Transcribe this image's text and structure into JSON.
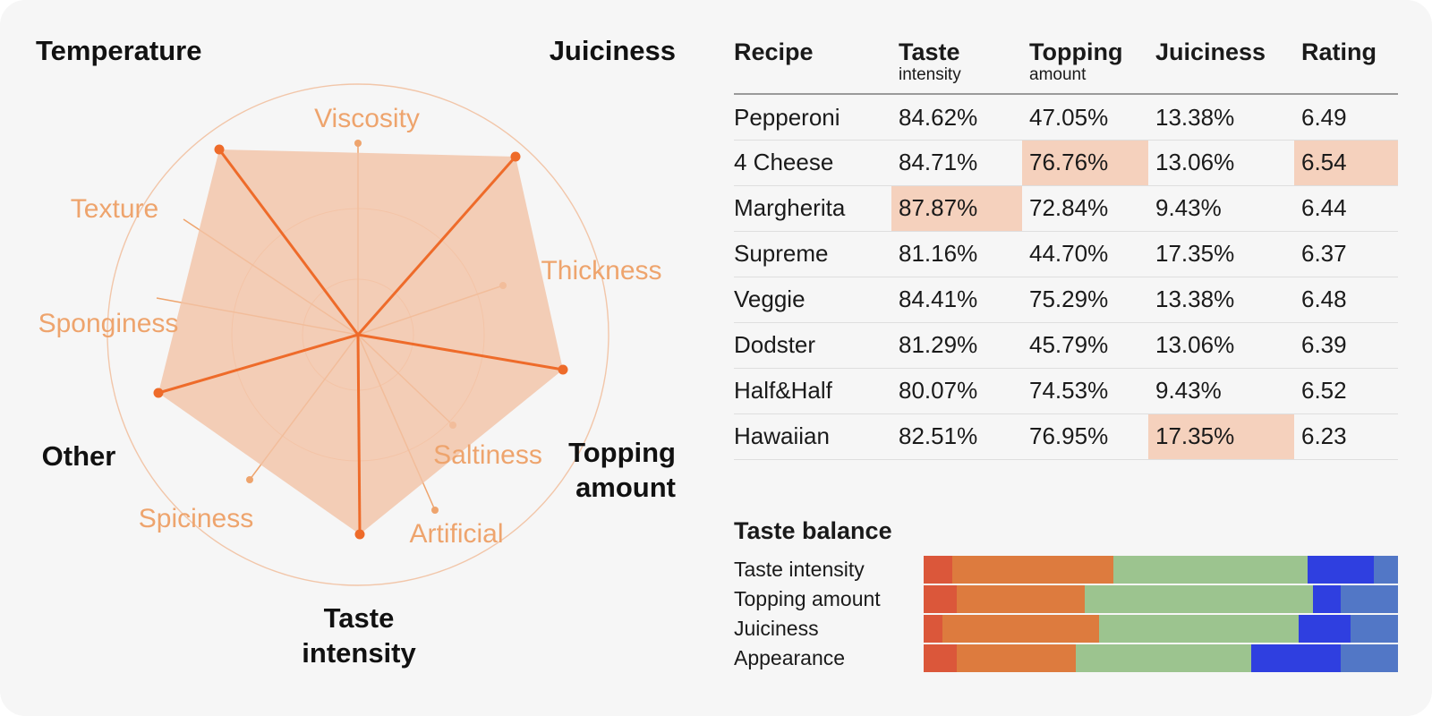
{
  "chart_data": [
    {
      "type": "radar",
      "main_axes": [
        "Juiciness",
        "Topping amount",
        "Taste intensity",
        "Other",
        "Temperature"
      ],
      "secondary_axes": [
        "Viscosity",
        "Thickness",
        "Saltiness",
        "Artificial",
        "Spiciness",
        "Sponginess",
        "Texture"
      ],
      "colors": {
        "fill": "#f2c3a6",
        "line": "#ee6b2a",
        "secondary": "#eea46d",
        "circle": "#f0b58f"
      }
    },
    {
      "type": "table",
      "columns": [
        {
          "title": "Recipe",
          "subtitle": ""
        },
        {
          "title": "Taste",
          "subtitle": "intensity"
        },
        {
          "title": "Topping",
          "subtitle": "amount"
        },
        {
          "title": "Juiciness",
          "subtitle": ""
        },
        {
          "title": "Rating",
          "subtitle": ""
        }
      ],
      "rows": [
        {
          "cells": [
            "Pepperoni",
            "84.62%",
            "47.05%",
            "13.38%",
            "6.49"
          ],
          "highlight": []
        },
        {
          "cells": [
            "4 Cheese",
            "84.71%",
            "76.76%",
            "13.06%",
            "6.54"
          ],
          "highlight": [
            2,
            4
          ]
        },
        {
          "cells": [
            "Margherita",
            "87.87%",
            "72.84%",
            "9.43%",
            "6.44"
          ],
          "highlight": [
            1
          ]
        },
        {
          "cells": [
            "Supreme",
            "81.16%",
            "44.70%",
            "17.35%",
            "6.37"
          ],
          "highlight": []
        },
        {
          "cells": [
            "Veggie",
            "84.41%",
            "75.29%",
            "13.38%",
            "6.48"
          ],
          "highlight": []
        },
        {
          "cells": [
            "Dodster",
            "81.29%",
            "45.79%",
            "13.06%",
            "6.39"
          ],
          "highlight": []
        },
        {
          "cells": [
            "Half&Half",
            "80.07%",
            "74.53%",
            "9.43%",
            "6.52"
          ],
          "highlight": []
        },
        {
          "cells": [
            "Hawaiian",
            "82.51%",
            "76.95%",
            "17.35%",
            "6.23"
          ],
          "highlight": [
            3
          ]
        }
      ],
      "highlight_color": "#f5d1bd"
    },
    {
      "type": "bar",
      "stacked": true,
      "title": "Taste balance",
      "categories": [
        "Taste intensity",
        "Topping amount",
        "Juiciness",
        "Appearance"
      ],
      "segment_colors": [
        "#db573a",
        "#dd7b3e",
        "#9cc48f",
        "#2f3fe0",
        "#5277c6"
      ],
      "values": [
        [
          6,
          34,
          41,
          14,
          5
        ],
        [
          7,
          27,
          48,
          6,
          12
        ],
        [
          4,
          33,
          42,
          11,
          10
        ],
        [
          7,
          25,
          37,
          19,
          12
        ]
      ]
    }
  ]
}
